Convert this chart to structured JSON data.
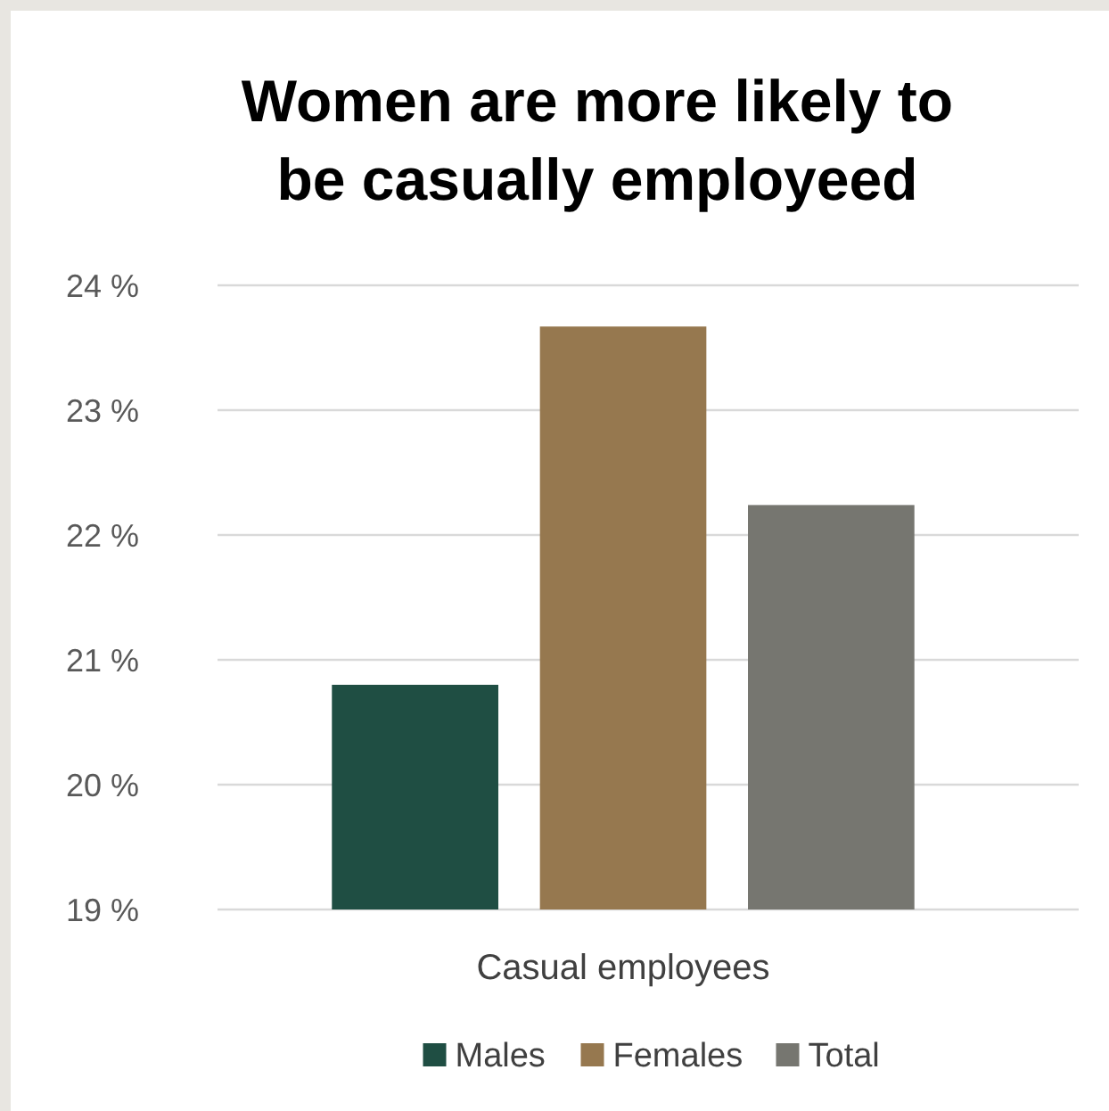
{
  "chart_data": {
    "type": "bar",
    "title": "Women are more likely to be casually employeed",
    "categories": [
      "Casual employees"
    ],
    "series": [
      {
        "name": "Males",
        "color": "#1f4e43",
        "values": [
          20.8
        ]
      },
      {
        "name": "Females",
        "color": "#96784f",
        "values": [
          23.67
        ]
      },
      {
        "name": "Total",
        "color": "#767670",
        "values": [
          22.24
        ]
      }
    ],
    "ylim": [
      19,
      24
    ],
    "yticks": [
      {
        "value": 19,
        "label": "19 %"
      },
      {
        "value": 20,
        "label": "20 %"
      },
      {
        "value": 21,
        "label": "21 %"
      },
      {
        "value": 22,
        "label": "22 %"
      },
      {
        "value": 23,
        "label": "23 %"
      },
      {
        "value": 24,
        "label": "24 %"
      }
    ],
    "grid": "y",
    "legend": "bottom"
  }
}
